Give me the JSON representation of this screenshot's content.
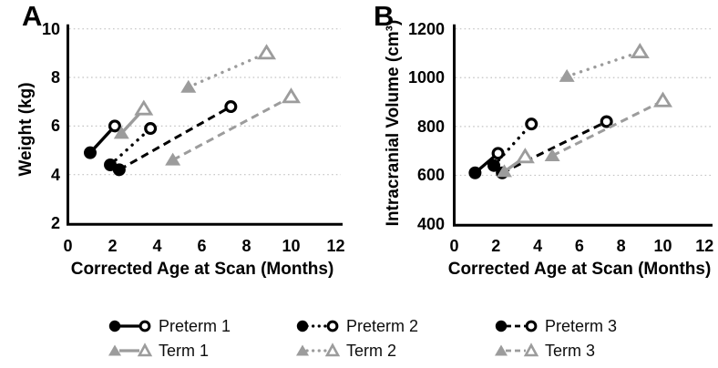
{
  "figure": {
    "background": "#ffffff",
    "panel_labels": [
      "A",
      "B"
    ]
  },
  "colors": {
    "preterm": "#000000",
    "term": "#9c9c9c",
    "gridline": "#c4c4c4",
    "axis": "#000000"
  },
  "chart_data": [
    {
      "type": "line",
      "panel": "A",
      "xlabel": "Corrected Age at Scan (Months)",
      "ylabel": "Weight (kg)",
      "xlim": [
        0,
        12
      ],
      "ylim": [
        2,
        10
      ],
      "xticks": [
        0,
        2,
        4,
        6,
        8,
        10,
        12
      ],
      "yticks": [
        2,
        4,
        6,
        8,
        10
      ],
      "grid": "horizontal dotted gridlines at y = 4, 6, 8, 10",
      "legend_position": "below figure, shared",
      "marker_convention": "first point of each pair = filled marker (scan 1), second point = open marker (scan 2)",
      "series": [
        {
          "name": "Preterm 1",
          "color": "#000000",
          "line": "solid",
          "marker": "circle",
          "points": [
            [
              1.0,
              4.9
            ],
            [
              2.1,
              6.0
            ]
          ]
        },
        {
          "name": "Preterm 2",
          "color": "#000000",
          "line": "dotted",
          "marker": "circle",
          "points": [
            [
              1.9,
              4.4
            ],
            [
              3.7,
              5.9
            ]
          ]
        },
        {
          "name": "Preterm 3",
          "color": "#000000",
          "line": "dashed",
          "marker": "circle",
          "points": [
            [
              2.3,
              4.2
            ],
            [
              7.3,
              6.8
            ]
          ]
        },
        {
          "name": "Term 1",
          "color": "#9c9c9c",
          "line": "solid",
          "marker": "triangle",
          "points": [
            [
              2.4,
              5.7
            ],
            [
              3.4,
              6.7
            ]
          ]
        },
        {
          "name": "Term 2",
          "color": "#9c9c9c",
          "line": "dotted",
          "marker": "triangle",
          "points": [
            [
              5.4,
              7.6
            ],
            [
              8.9,
              9.0
            ]
          ]
        },
        {
          "name": "Term 3",
          "color": "#9c9c9c",
          "line": "dashed",
          "marker": "triangle",
          "points": [
            [
              4.7,
              4.6
            ],
            [
              10.0,
              7.2
            ]
          ]
        }
      ]
    },
    {
      "type": "line",
      "panel": "B",
      "xlabel": "Corrected Age at Scan (Months)",
      "ylabel": "Intracranial Volume (cm³)",
      "xlim": [
        0,
        12
      ],
      "ylim": [
        400,
        1200
      ],
      "xticks": [
        0,
        2,
        4,
        6,
        8,
        10,
        12
      ],
      "yticks": [
        400,
        600,
        800,
        1000,
        1200
      ],
      "grid": "horizontal dotted gridlines at y = 600, 800, 1000, 1200",
      "legend_position": "below figure, shared",
      "marker_convention": "first point of each pair = filled marker (scan 1), second point = open marker (scan 2)",
      "series": [
        {
          "name": "Preterm 1",
          "color": "#000000",
          "line": "solid",
          "marker": "circle",
          "points": [
            [
              1.0,
              610
            ],
            [
              2.1,
              690
            ]
          ]
        },
        {
          "name": "Preterm 2",
          "color": "#000000",
          "line": "dotted",
          "marker": "circle",
          "points": [
            [
              1.9,
              640
            ],
            [
              3.7,
              810
            ]
          ]
        },
        {
          "name": "Preterm 3",
          "color": "#000000",
          "line": "dashed",
          "marker": "circle",
          "points": [
            [
              2.3,
              610
            ],
            [
              7.3,
              820
            ]
          ]
        },
        {
          "name": "Term 1",
          "color": "#9c9c9c",
          "line": "solid",
          "marker": "triangle",
          "points": [
            [
              2.4,
              615
            ],
            [
              3.4,
              675
            ]
          ]
        },
        {
          "name": "Term 2",
          "color": "#9c9c9c",
          "line": "dotted",
          "marker": "triangle",
          "points": [
            [
              5.4,
              1005
            ],
            [
              8.9,
              1105
            ]
          ]
        },
        {
          "name": "Term 3",
          "color": "#9c9c9c",
          "line": "dashed",
          "marker": "triangle",
          "points": [
            [
              4.7,
              680
            ],
            [
              10.0,
              905
            ]
          ]
        }
      ]
    }
  ],
  "legend": {
    "rows": [
      [
        {
          "label": "Preterm 1",
          "color": "#000000",
          "line": "solid",
          "marker": "circle"
        },
        {
          "label": "Preterm 2",
          "color": "#000000",
          "line": "dotted",
          "marker": "circle"
        },
        {
          "label": "Preterm 3",
          "color": "#000000",
          "line": "dashed",
          "marker": "circle"
        }
      ],
      [
        {
          "label": "Term 1",
          "color": "#9c9c9c",
          "line": "solid",
          "marker": "triangle"
        },
        {
          "label": "Term 2",
          "color": "#9c9c9c",
          "line": "dotted",
          "marker": "triangle"
        },
        {
          "label": "Term 3",
          "color": "#9c9c9c",
          "line": "dashed",
          "marker": "triangle"
        }
      ]
    ]
  }
}
